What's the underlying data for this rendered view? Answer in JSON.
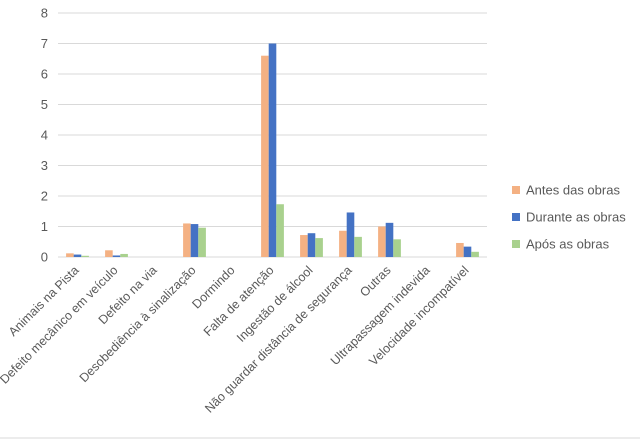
{
  "chart_data": {
    "type": "bar",
    "title": "",
    "xlabel": "",
    "ylabel": "",
    "ylim": [
      0,
      8
    ],
    "yticks": [
      0,
      1,
      2,
      3,
      4,
      5,
      6,
      7,
      8
    ],
    "grid": true,
    "legend_position": "right",
    "categories": [
      "Animais na Pista",
      "Defeito mecânico em veículo",
      "Defeito na via",
      "Desobediência à sinalização",
      "Dormindo",
      "Falta de atenção",
      "Ingestão de álcool",
      "Não guardar distância de segurança",
      "Outras",
      "Ultrapassagem indevida",
      "Velocidade incompatível"
    ],
    "series": [
      {
        "name": "Antes das obras",
        "color": "#f4b183",
        "values": [
          0.12,
          0.22,
          0,
          1.1,
          0,
          6.6,
          0.72,
          0.86,
          1.0,
          0,
          0.46
        ]
      },
      {
        "name": "Durante as obras",
        "color": "#4472c4",
        "values": [
          0.08,
          0.05,
          0,
          1.08,
          0,
          7.0,
          0.78,
          1.46,
          1.12,
          0,
          0.34
        ]
      },
      {
        "name": "Após as obras",
        "color": "#a9d18e",
        "values": [
          0.04,
          0.1,
          0,
          0.96,
          0,
          1.73,
          0.62,
          0.66,
          0.58,
          0,
          0.17
        ]
      }
    ]
  }
}
